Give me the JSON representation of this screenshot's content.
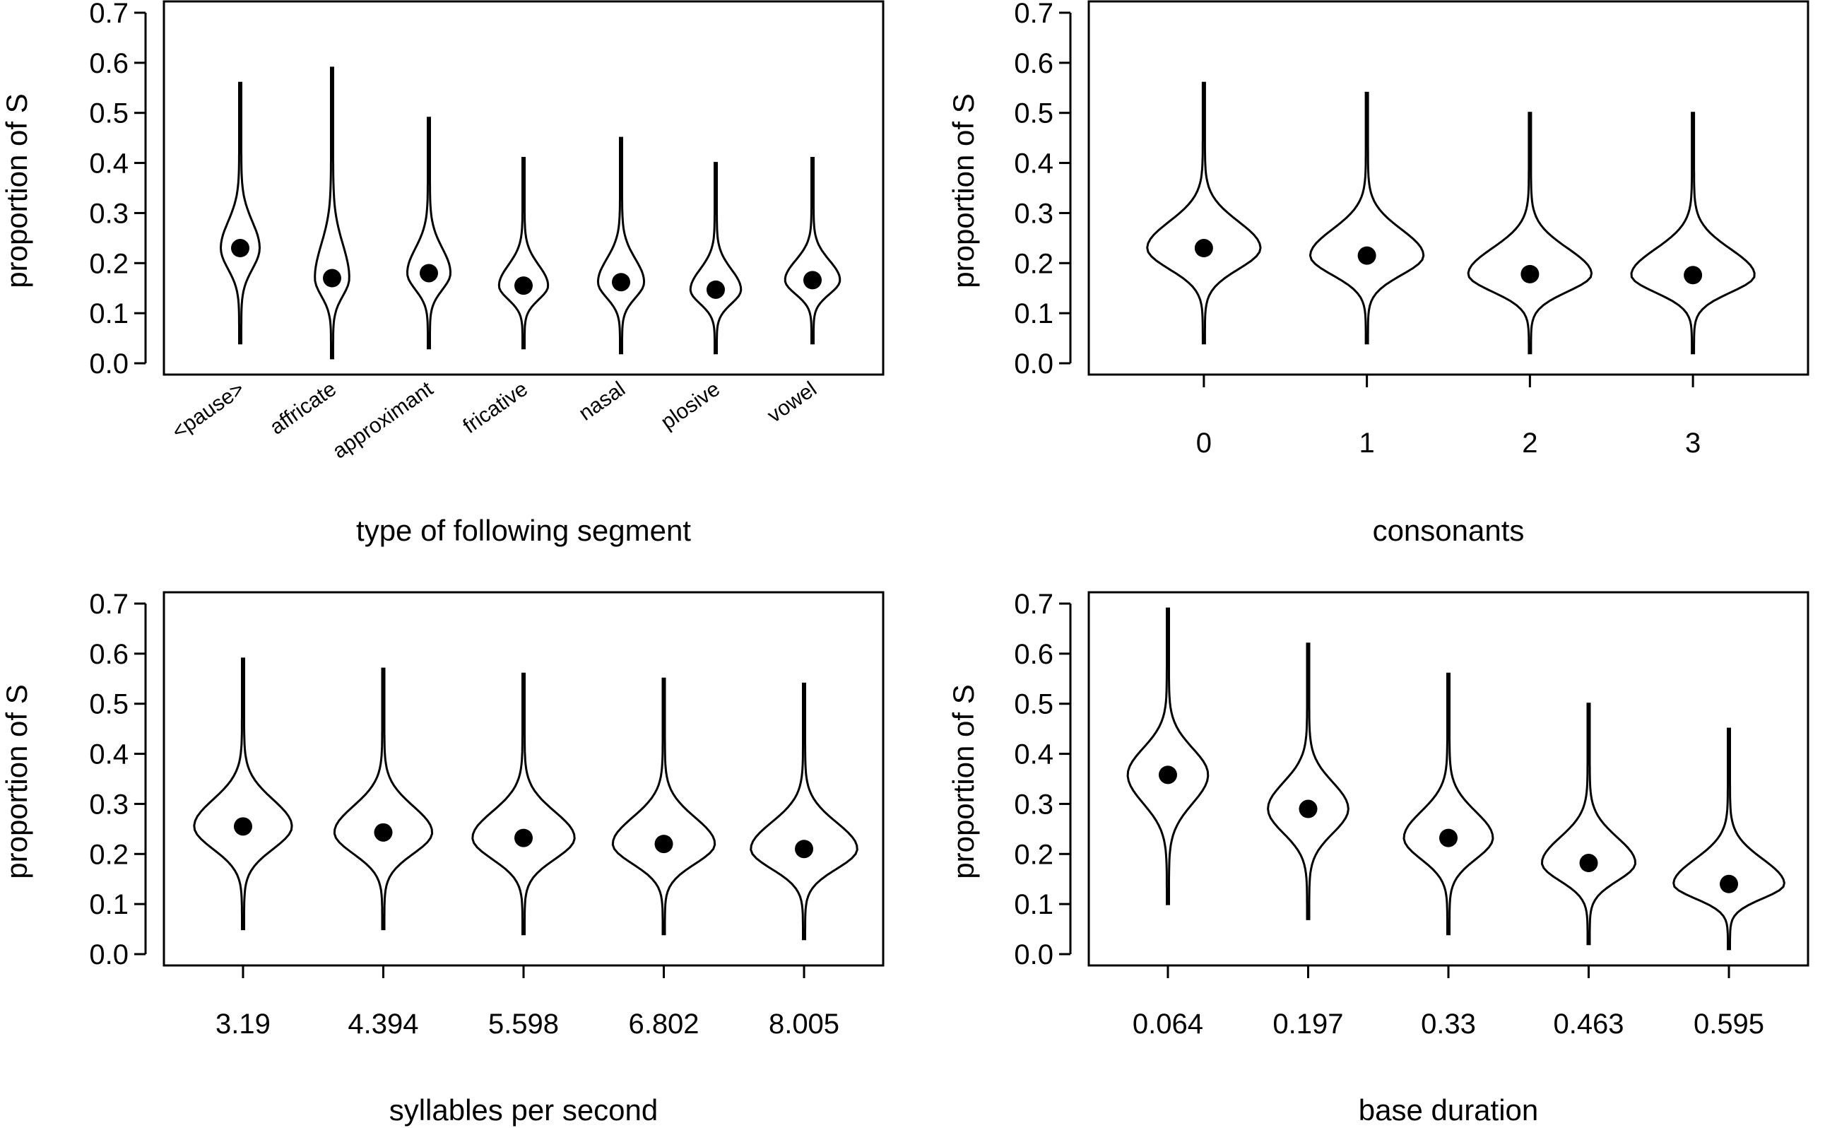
{
  "figure": {
    "layout": "2x2 grid of violin plots"
  },
  "chart_data": [
    {
      "type": "violin",
      "title": "",
      "xlabel": "type of following segment",
      "ylabel": "proportion of S",
      "ylim": [
        0.0,
        0.7
      ],
      "yticks": [
        0.0,
        0.1,
        0.2,
        0.3,
        0.4,
        0.5,
        0.6,
        0.7
      ],
      "ytick_labels": [
        "0.0",
        "0.1",
        "0.2",
        "0.3",
        "0.4",
        "0.5",
        "0.6",
        "0.7"
      ],
      "x_tick_style": "rotated",
      "show_xticks": false,
      "categories": [
        "<pause>",
        "affricate",
        "approximant",
        "fricative",
        "nasal",
        "plosive",
        "vowel"
      ],
      "violins": [
        {
          "median": 0.23,
          "min": 0.04,
          "max": 0.56,
          "width": 0.25
        },
        {
          "median": 0.17,
          "min": 0.01,
          "max": 0.59,
          "width": 0.22
        },
        {
          "median": 0.18,
          "min": 0.03,
          "max": 0.49,
          "width": 0.28
        },
        {
          "median": 0.155,
          "min": 0.03,
          "max": 0.41,
          "width": 0.32
        },
        {
          "median": 0.162,
          "min": 0.02,
          "max": 0.45,
          "width": 0.3
        },
        {
          "median": 0.147,
          "min": 0.02,
          "max": 0.4,
          "width": 0.33
        },
        {
          "median": 0.166,
          "min": 0.04,
          "max": 0.41,
          "width": 0.36
        }
      ]
    },
    {
      "type": "violin",
      "title": "",
      "xlabel": "consonants",
      "ylabel": "proportion of S",
      "ylim": [
        0.0,
        0.7
      ],
      "yticks": [
        0.0,
        0.1,
        0.2,
        0.3,
        0.4,
        0.5,
        0.6,
        0.7
      ],
      "ytick_labels": [
        "0.0",
        "0.1",
        "0.2",
        "0.3",
        "0.4",
        "0.5",
        "0.6",
        "0.7"
      ],
      "x_tick_style": "horizontal",
      "show_xticks": true,
      "categories": [
        "0",
        "1",
        "2",
        "3"
      ],
      "violins": [
        {
          "median": 0.23,
          "min": 0.04,
          "max": 0.56,
          "width": 0.44
        },
        {
          "median": 0.215,
          "min": 0.04,
          "max": 0.54,
          "width": 0.44
        },
        {
          "median": 0.178,
          "min": 0.02,
          "max": 0.5,
          "width": 0.48
        },
        {
          "median": 0.176,
          "min": 0.02,
          "max": 0.5,
          "width": 0.48
        }
      ]
    },
    {
      "type": "violin",
      "title": "",
      "xlabel": "syllables per second",
      "ylabel": "proportion of S",
      "ylim": [
        0.0,
        0.7
      ],
      "yticks": [
        0.0,
        0.1,
        0.2,
        0.3,
        0.4,
        0.5,
        0.6,
        0.7
      ],
      "ytick_labels": [
        "0.0",
        "0.1",
        "0.2",
        "0.3",
        "0.4",
        "0.5",
        "0.6",
        "0.7"
      ],
      "x_tick_style": "horizontal",
      "show_xticks": true,
      "categories": [
        "3.19",
        "4.394",
        "5.598",
        "6.802",
        "8.005"
      ],
      "violins": [
        {
          "median": 0.255,
          "min": 0.05,
          "max": 0.59,
          "width": 0.44
        },
        {
          "median": 0.243,
          "min": 0.05,
          "max": 0.57,
          "width": 0.44
        },
        {
          "median": 0.232,
          "min": 0.04,
          "max": 0.56,
          "width": 0.46
        },
        {
          "median": 0.22,
          "min": 0.04,
          "max": 0.55,
          "width": 0.46
        },
        {
          "median": 0.21,
          "min": 0.03,
          "max": 0.54,
          "width": 0.48
        }
      ]
    },
    {
      "type": "violin",
      "title": "",
      "xlabel": "base duration",
      "ylabel": "proportion of S",
      "ylim": [
        0.0,
        0.7
      ],
      "yticks": [
        0.0,
        0.1,
        0.2,
        0.3,
        0.4,
        0.5,
        0.6,
        0.7
      ],
      "ytick_labels": [
        "0.0",
        "0.1",
        "0.2",
        "0.3",
        "0.4",
        "0.5",
        "0.6",
        "0.7"
      ],
      "x_tick_style": "horizontal",
      "show_xticks": true,
      "categories": [
        "0.064",
        "0.197",
        "0.33",
        "0.463",
        "0.595"
      ],
      "violins": [
        {
          "median": 0.358,
          "min": 0.1,
          "max": 0.69,
          "width": 0.36
        },
        {
          "median": 0.29,
          "min": 0.07,
          "max": 0.62,
          "width": 0.36
        },
        {
          "median": 0.232,
          "min": 0.04,
          "max": 0.56,
          "width": 0.4
        },
        {
          "median": 0.182,
          "min": 0.02,
          "max": 0.5,
          "width": 0.42
        },
        {
          "median": 0.14,
          "min": 0.01,
          "max": 0.45,
          "width": 0.5
        }
      ]
    }
  ]
}
